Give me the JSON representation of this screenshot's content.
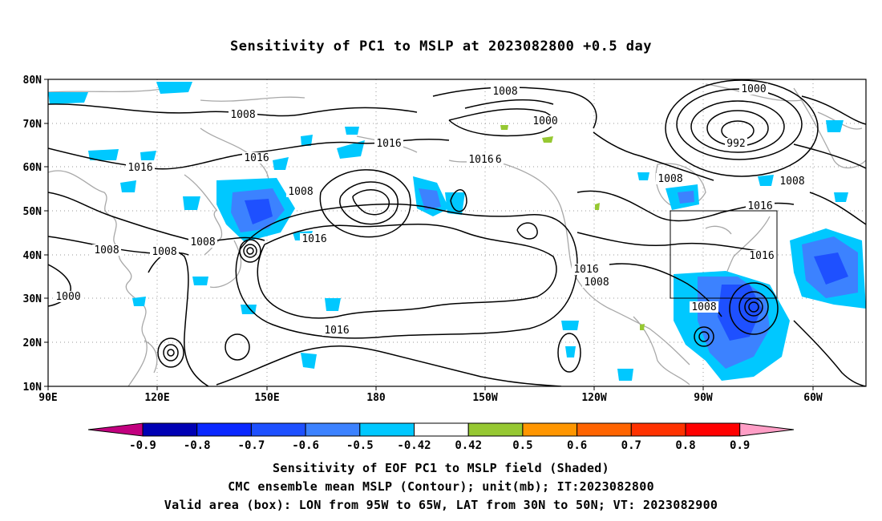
{
  "title": "Sensitivity of PC1 to MSLP at 2023082800 +0.5 day",
  "lat_labels": [
    "80N",
    "70N",
    "60N",
    "50N",
    "40N",
    "30N",
    "20N",
    "10N"
  ],
  "lon_labels": [
    "90E",
    "120E",
    "150E",
    "180",
    "150W",
    "120W",
    "90W",
    "60W"
  ],
  "contour_labels": [
    "1008",
    "1000",
    "1016",
    "1008",
    "1016",
    "992",
    "1000",
    "1016",
    "1008",
    "1016",
    "1016",
    "1008",
    "1008",
    "1016",
    "1008",
    "1016",
    "1016",
    "1008",
    "1000",
    "1016",
    "1008",
    "1008",
    "1016",
    "1008"
  ],
  "colorbar": {
    "labels": [
      "-0.9",
      "-0.8",
      "-0.7",
      "-0.6",
      "-0.5",
      "-0.42",
      "0.42",
      "0.5",
      "0.6",
      "0.7",
      "0.8",
      "0.9"
    ],
    "colors": [
      "#c2007f",
      "#0000b4",
      "#0a28ff",
      "#1e50ff",
      "#3c82ff",
      "#00c8ff",
      "#ffffff",
      "#96c832",
      "#ff9600",
      "#ff6400",
      "#ff3200",
      "#ff0000",
      "#ff9ec6"
    ]
  },
  "caption": {
    "line1": "Sensitivity of EOF PC1 to MSLP field (Shaded)",
    "line2": "CMC ensemble mean MSLP (Contour); unit(mb); IT:2023082800",
    "line3": "Valid area (box): LON from 95W to 65W, LAT from 30N to 50N; VT: 2023082900"
  }
}
